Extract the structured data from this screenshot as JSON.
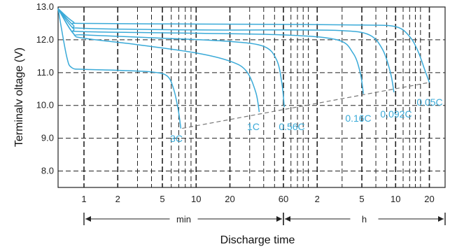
{
  "chart_data": {
    "type": "line",
    "xlabel": "Discharge time",
    "ylabel": "Terminalv oltage (V)",
    "x_scale": "log",
    "ylim": [
      7.5,
      13.0
    ],
    "grid": true,
    "yticks": [
      "8.0",
      "9.0",
      "10.0",
      "11.0",
      "12.0",
      "13.0"
    ],
    "xticks": [
      {
        "label": "1",
        "minutes": 1
      },
      {
        "label": "2",
        "minutes": 2
      },
      {
        "label": "5",
        "minutes": 5
      },
      {
        "label": "10",
        "minutes": 10
      },
      {
        "label": "20",
        "minutes": 20
      },
      {
        "label": "60",
        "minutes": 60
      },
      {
        "label": "2",
        "minutes": 120
      },
      {
        "label": "5",
        "minutes": 300
      },
      {
        "label": "10",
        "minutes": 600
      },
      {
        "label": "20",
        "minutes": 1200
      }
    ],
    "ranges": [
      {
        "label": "min",
        "from_minutes": 1,
        "to_minutes": 60
      },
      {
        "label": "h",
        "from_minutes": 60,
        "to_minutes": 3000
      }
    ],
    "colors": {
      "series": "#3aaad8",
      "grid": "#222222",
      "endline": "#777777"
    },
    "series": [
      {
        "name": "3C",
        "points": [
          [
            0.5,
            12.95
          ],
          [
            0.7,
            11.5
          ],
          [
            0.78,
            11.15
          ],
          [
            1,
            11.1
          ],
          [
            2,
            11.07
          ],
          [
            4,
            11.02
          ],
          [
            5.5,
            10.9
          ],
          [
            6.3,
            10.5
          ],
          [
            6.9,
            9.9
          ],
          [
            7.3,
            9.3
          ]
        ]
      },
      {
        "name": "1C",
        "points": [
          [
            0.5,
            12.95
          ],
          [
            0.8,
            12.2
          ],
          [
            1,
            12.05
          ],
          [
            3,
            11.85
          ],
          [
            10,
            11.6
          ],
          [
            20,
            11.35
          ],
          [
            28,
            11.05
          ],
          [
            34,
            10.4
          ],
          [
            36.5,
            9.8
          ]
        ]
      },
      {
        "name": "0.56C",
        "points": [
          [
            0.5,
            12.95
          ],
          [
            0.8,
            12.2
          ],
          [
            1,
            12.15
          ],
          [
            5,
            12.05
          ],
          [
            20,
            11.95
          ],
          [
            40,
            11.8
          ],
          [
            52,
            11.4
          ],
          [
            58,
            10.7
          ],
          [
            61,
            9.95
          ]
        ]
      },
      {
        "name": "0.16C",
        "points": [
          [
            0.5,
            12.95
          ],
          [
            0.8,
            12.35
          ],
          [
            1,
            12.25
          ],
          [
            10,
            12.2
          ],
          [
            60,
            12.15
          ],
          [
            180,
            12.0
          ],
          [
            250,
            11.6
          ],
          [
            290,
            11.0
          ],
          [
            310,
            10.35
          ]
        ]
      },
      {
        "name": "0.092C",
        "points": [
          [
            0.5,
            12.95
          ],
          [
            0.8,
            12.45
          ],
          [
            1,
            12.35
          ],
          [
            10,
            12.3
          ],
          [
            60,
            12.3
          ],
          [
            200,
            12.28
          ],
          [
            350,
            12.15
          ],
          [
            460,
            11.7
          ],
          [
            540,
            11.0
          ],
          [
            580,
            10.4
          ]
        ]
      },
      {
        "name": "0.05C",
        "points": [
          [
            0.5,
            12.95
          ],
          [
            0.8,
            12.55
          ],
          [
            1,
            12.5
          ],
          [
            10,
            12.48
          ],
          [
            60,
            12.47
          ],
          [
            300,
            12.45
          ],
          [
            600,
            12.4
          ],
          [
            800,
            12.1
          ],
          [
            950,
            11.65
          ],
          [
            1100,
            11.05
          ],
          [
            1200,
            10.7
          ]
        ]
      }
    ],
    "end_line": [
      [
        7.5,
        9.3
      ],
      [
        1200,
        10.7
      ]
    ]
  }
}
